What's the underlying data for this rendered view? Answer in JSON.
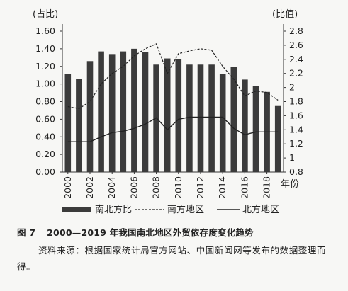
{
  "chart_data": {
    "type": "bar+line",
    "x_label": "年份",
    "y_left_label": "(占比)",
    "y_right_label": "(比值)",
    "y_left_ticks": [
      "0.00",
      "0.20",
      "0.40",
      "0.60",
      "0.80",
      "1.00",
      "1.20",
      "1.40",
      "1.60"
    ],
    "y_right_ticks": [
      "0.8",
      "1",
      "1.2",
      "1.4",
      "1.6",
      "1.8",
      "2",
      "2.2",
      "2.4",
      "2.6",
      "2.8"
    ],
    "y_left_range": [
      0,
      1.6
    ],
    "y_right_range": [
      0.8,
      2.8
    ],
    "categories": [
      "2000",
      "2001",
      "2002",
      "2003",
      "2004",
      "2005",
      "2006",
      "2007",
      "2008",
      "2009",
      "2010",
      "2011",
      "2012",
      "2013",
      "2014",
      "2015",
      "2016",
      "2017",
      "2018",
      "2019"
    ],
    "x_tick_labels": [
      "2000",
      "2002",
      "2004",
      "2006",
      "2008",
      "2010",
      "2012",
      "2014",
      "2016",
      "2018"
    ],
    "series": [
      {
        "name": "南北方比",
        "type": "bar",
        "axis": "left",
        "color": "#3b3b3b",
        "values": [
          1.11,
          1.06,
          1.26,
          1.37,
          1.34,
          1.37,
          1.4,
          1.36,
          1.22,
          1.29,
          1.28,
          1.22,
          1.22,
          1.22,
          1.11,
          1.19,
          1.05,
          0.98,
          0.91,
          0.75
        ]
      },
      {
        "name": "南方地区",
        "type": "line",
        "style": "dashed",
        "axis": "right",
        "color": "#222222",
        "values": [
          1.73,
          1.7,
          1.8,
          2.05,
          2.2,
          2.3,
          2.45,
          2.55,
          2.62,
          2.2,
          2.48,
          2.52,
          2.55,
          2.53,
          2.3,
          2.12,
          1.88,
          1.95,
          1.93,
          1.82
        ]
      },
      {
        "name": "北方地区",
        "type": "line",
        "style": "solid",
        "axis": "right",
        "color": "#222222",
        "values": [
          1.23,
          1.23,
          1.23,
          1.3,
          1.36,
          1.38,
          1.42,
          1.48,
          1.57,
          1.4,
          1.55,
          1.58,
          1.58,
          1.58,
          1.58,
          1.42,
          1.33,
          1.37,
          1.37,
          1.37
        ]
      }
    ],
    "legend_position": "bottom",
    "grid": false
  },
  "caption": {
    "figure_number": "图 7",
    "title": "2000—2019 年我国南北地区外贸依存度变化趋势"
  },
  "source_note": "资料来源：根据国家统计局官方网站、中国新闻网等发布的数据整理而得。"
}
